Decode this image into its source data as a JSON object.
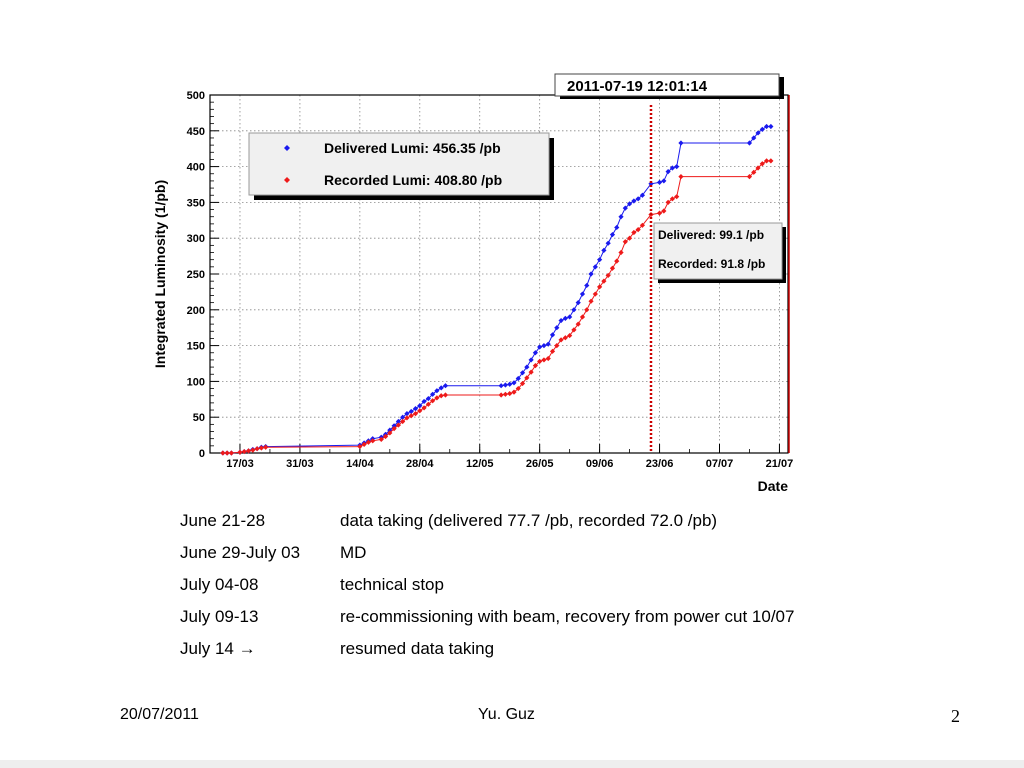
{
  "chart_data": {
    "type": "line",
    "timestamp": "2011-07-19 12:01:14",
    "ylabel": "Integrated Luminosity (1/pb)",
    "xlabel": "Date",
    "ylim": [
      0,
      500
    ],
    "xlim": [
      "2011-03-10",
      "2011-07-23"
    ],
    "y_ticks": [
      0,
      50,
      100,
      150,
      200,
      250,
      300,
      350,
      400,
      450,
      500
    ],
    "x_ticks": [
      {
        "date": "2011-03-17",
        "label": "17/03"
      },
      {
        "date": "2011-03-31",
        "label": "31/03"
      },
      {
        "date": "2011-04-14",
        "label": "14/04"
      },
      {
        "date": "2011-04-28",
        "label": "28/04"
      },
      {
        "date": "2011-05-12",
        "label": "12/05"
      },
      {
        "date": "2011-05-26",
        "label": "26/05"
      },
      {
        "date": "2011-06-09",
        "label": "09/06"
      },
      {
        "date": "2011-06-23",
        "label": "23/06"
      },
      {
        "date": "2011-07-07",
        "label": "07/07"
      },
      {
        "date": "2011-07-21",
        "label": "21/07"
      }
    ],
    "grid": true,
    "legend_position": "top-left",
    "series": [
      {
        "name": "Delivered Lumi: 456.35 /pb",
        "color": "#1a1aee",
        "points": [
          [
            "2011-03-13",
            0
          ],
          [
            "2011-03-14",
            0
          ],
          [
            "2011-03-15",
            0
          ],
          [
            "2011-03-17",
            1
          ],
          [
            "2011-03-18",
            2
          ],
          [
            "2011-03-19",
            3
          ],
          [
            "2011-03-20",
            5
          ],
          [
            "2011-03-21",
            6
          ],
          [
            "2011-03-22",
            8
          ],
          [
            "2011-03-23",
            9
          ],
          [
            "2011-04-14",
            11
          ],
          [
            "2011-04-15",
            14
          ],
          [
            "2011-04-16",
            17
          ],
          [
            "2011-04-17",
            20
          ],
          [
            "2011-04-19",
            22
          ],
          [
            "2011-04-20",
            26
          ],
          [
            "2011-04-21",
            32
          ],
          [
            "2011-04-22",
            38
          ],
          [
            "2011-04-23",
            44
          ],
          [
            "2011-04-24",
            50
          ],
          [
            "2011-04-25",
            55
          ],
          [
            "2011-04-26",
            58
          ],
          [
            "2011-04-27",
            62
          ],
          [
            "2011-04-28",
            66
          ],
          [
            "2011-04-29",
            72
          ],
          [
            "2011-04-30",
            76
          ],
          [
            "2011-05-01",
            82
          ],
          [
            "2011-05-02",
            87
          ],
          [
            "2011-05-03",
            91
          ],
          [
            "2011-05-04",
            94
          ],
          [
            "2011-05-17",
            94
          ],
          [
            "2011-05-18",
            95
          ],
          [
            "2011-05-19",
            96
          ],
          [
            "2011-05-20",
            98
          ],
          [
            "2011-05-21",
            104
          ],
          [
            "2011-05-22",
            112
          ],
          [
            "2011-05-23",
            120
          ],
          [
            "2011-05-24",
            130
          ],
          [
            "2011-05-25",
            140
          ],
          [
            "2011-05-26",
            148
          ],
          [
            "2011-05-27",
            150
          ],
          [
            "2011-05-28",
            152
          ],
          [
            "2011-05-29",
            165
          ],
          [
            "2011-05-30",
            175
          ],
          [
            "2011-05-31",
            185
          ],
          [
            "2011-06-01",
            188
          ],
          [
            "2011-06-02",
            190
          ],
          [
            "2011-06-03",
            200
          ],
          [
            "2011-06-04",
            210
          ],
          [
            "2011-06-05",
            222
          ],
          [
            "2011-06-06",
            234
          ],
          [
            "2011-06-07",
            250
          ],
          [
            "2011-06-08",
            260
          ],
          [
            "2011-06-09",
            270
          ],
          [
            "2011-06-10",
            283
          ],
          [
            "2011-06-11",
            293
          ],
          [
            "2011-06-12",
            305
          ],
          [
            "2011-06-13",
            315
          ],
          [
            "2011-06-14",
            330
          ],
          [
            "2011-06-15",
            342
          ],
          [
            "2011-06-16",
            348
          ],
          [
            "2011-06-17",
            352
          ],
          [
            "2011-06-18",
            355
          ],
          [
            "2011-06-19",
            360
          ],
          [
            "2011-06-21",
            376
          ],
          [
            "2011-06-23",
            378
          ],
          [
            "2011-06-24",
            380
          ],
          [
            "2011-06-25",
            393
          ],
          [
            "2011-06-26",
            398
          ],
          [
            "2011-06-27",
            400
          ],
          [
            "2011-06-28",
            433
          ],
          [
            "2011-07-14",
            433
          ],
          [
            "2011-07-15",
            440
          ],
          [
            "2011-07-16",
            447
          ],
          [
            "2011-07-17",
            452
          ],
          [
            "2011-07-18",
            456
          ],
          [
            "2011-07-19",
            456
          ]
        ]
      },
      {
        "name": "Recorded Lumi: 408.80 /pb",
        "color": "#ee1a1a",
        "points": [
          [
            "2011-03-13",
            0
          ],
          [
            "2011-03-14",
            0
          ],
          [
            "2011-03-15",
            0
          ],
          [
            "2011-03-17",
            1
          ],
          [
            "2011-03-18",
            2
          ],
          [
            "2011-03-19",
            3
          ],
          [
            "2011-03-20",
            4
          ],
          [
            "2011-03-21",
            6
          ],
          [
            "2011-03-22",
            7
          ],
          [
            "2011-03-23",
            8
          ],
          [
            "2011-04-14",
            9
          ],
          [
            "2011-04-15",
            12
          ],
          [
            "2011-04-16",
            15
          ],
          [
            "2011-04-17",
            17
          ],
          [
            "2011-04-19",
            19
          ],
          [
            "2011-04-20",
            23
          ],
          [
            "2011-04-21",
            28
          ],
          [
            "2011-04-22",
            34
          ],
          [
            "2011-04-23",
            39
          ],
          [
            "2011-04-24",
            44
          ],
          [
            "2011-04-25",
            49
          ],
          [
            "2011-04-26",
            52
          ],
          [
            "2011-04-27",
            55
          ],
          [
            "2011-04-28",
            59
          ],
          [
            "2011-04-29",
            63
          ],
          [
            "2011-04-30",
            68
          ],
          [
            "2011-05-01",
            73
          ],
          [
            "2011-05-02",
            77
          ],
          [
            "2011-05-03",
            80
          ],
          [
            "2011-05-04",
            81
          ],
          [
            "2011-05-17",
            81
          ],
          [
            "2011-05-18",
            82
          ],
          [
            "2011-05-19",
            83
          ],
          [
            "2011-05-20",
            85
          ],
          [
            "2011-05-21",
            90
          ],
          [
            "2011-05-22",
            97
          ],
          [
            "2011-05-23",
            105
          ],
          [
            "2011-05-24",
            113
          ],
          [
            "2011-05-25",
            122
          ],
          [
            "2011-05-26",
            128
          ],
          [
            "2011-05-27",
            130
          ],
          [
            "2011-05-28",
            132
          ],
          [
            "2011-05-29",
            142
          ],
          [
            "2011-05-30",
            150
          ],
          [
            "2011-05-31",
            158
          ],
          [
            "2011-06-01",
            161
          ],
          [
            "2011-06-02",
            164
          ],
          [
            "2011-06-03",
            172
          ],
          [
            "2011-06-04",
            180
          ],
          [
            "2011-06-05",
            190
          ],
          [
            "2011-06-06",
            200
          ],
          [
            "2011-06-07",
            212
          ],
          [
            "2011-06-08",
            222
          ],
          [
            "2011-06-09",
            232
          ],
          [
            "2011-06-10",
            240
          ],
          [
            "2011-06-11",
            248
          ],
          [
            "2011-06-12",
            258
          ],
          [
            "2011-06-13",
            268
          ],
          [
            "2011-06-14",
            280
          ],
          [
            "2011-06-15",
            295
          ],
          [
            "2011-06-16",
            300
          ],
          [
            "2011-06-17",
            308
          ],
          [
            "2011-06-18",
            312
          ],
          [
            "2011-06-19",
            318
          ],
          [
            "2011-06-21",
            333
          ],
          [
            "2011-06-23",
            335
          ],
          [
            "2011-06-24",
            338
          ],
          [
            "2011-06-25",
            350
          ],
          [
            "2011-06-26",
            355
          ],
          [
            "2011-06-27",
            358
          ],
          [
            "2011-06-28",
            386
          ],
          [
            "2011-07-14",
            386
          ],
          [
            "2011-07-15",
            392
          ],
          [
            "2011-07-16",
            398
          ],
          [
            "2011-07-17",
            404
          ],
          [
            "2011-07-18",
            408
          ],
          [
            "2011-07-19",
            408
          ]
        ]
      }
    ],
    "marker_line": {
      "date": "2011-06-21",
      "color": "#cc0000",
      "style": "dotted"
    },
    "annotation_box": {
      "lines": [
        "Delivered: 99.1 /pb",
        "Recorded: 91.8 /pb"
      ],
      "position": "right"
    }
  },
  "notes": [
    {
      "period": "June 21-28",
      "description": "data taking (delivered 77.7 /pb, recorded 72.0 /pb)"
    },
    {
      "period": "June 29-July 03",
      "description": "MD"
    },
    {
      "period": "July 04-08",
      "description": "technical stop"
    },
    {
      "period": "July 09-13",
      "description": "re-commissioning with beam, recovery from power cut 10/07"
    },
    {
      "period": "July 14 →",
      "description": "resumed data taking"
    }
  ],
  "footer": {
    "date": "20/07/2011",
    "author": "Yu. Guz",
    "page": "2"
  }
}
